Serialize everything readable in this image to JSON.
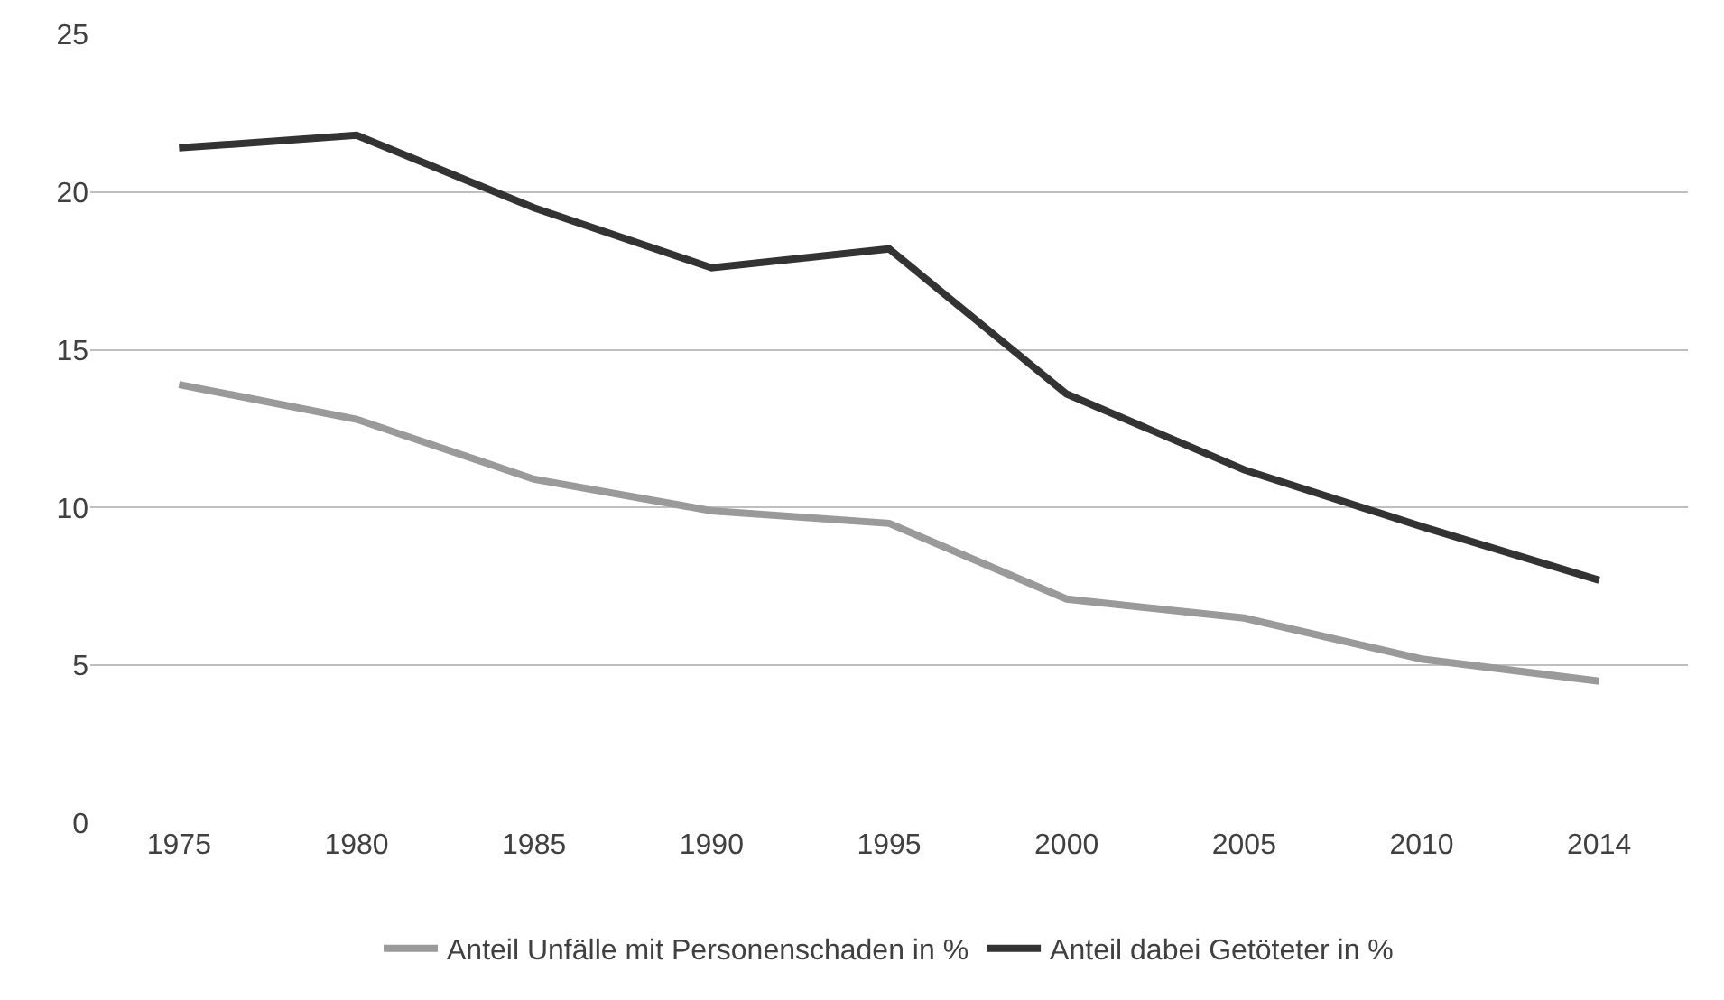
{
  "chart_data": {
    "type": "line",
    "categories": [
      "1975",
      "1980",
      "1985",
      "1990",
      "1995",
      "2000",
      "2005",
      "2010",
      "2014"
    ],
    "series": [
      {
        "name": "Anteil Unfälle mit Personenschaden in %",
        "color": "#9a9a9a",
        "values": [
          13.9,
          12.8,
          10.9,
          9.9,
          9.5,
          7.1,
          6.5,
          5.2,
          4.5
        ]
      },
      {
        "name": "Anteil dabei Getöteter in %",
        "color": "#333333",
        "values": [
          21.4,
          21.8,
          19.5,
          17.6,
          18.2,
          13.6,
          11.2,
          9.4,
          7.7
        ]
      }
    ],
    "ylim": [
      0,
      25
    ],
    "yticks": [
      0,
      5,
      10,
      15,
      20,
      25
    ],
    "grid": "y",
    "legend": "bottom",
    "marker": "none",
    "line_style": "solid"
  }
}
